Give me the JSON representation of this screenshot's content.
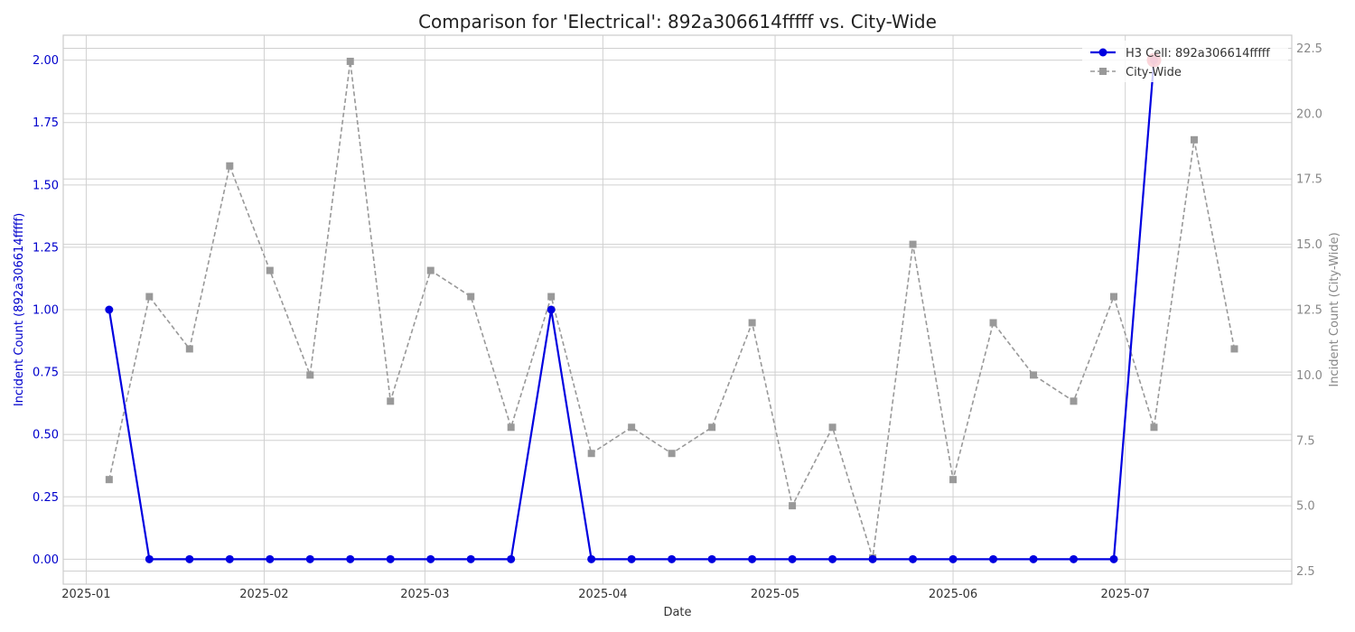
{
  "chart_data": {
    "type": "line",
    "title": "Comparison for 'Electrical': 892a306614fffff vs. City-Wide",
    "xlabel": "Date",
    "ylabel_left": "Incident Count (892a306614fffff)",
    "ylabel_right": "Incident Count (City-Wide)",
    "x_ticks": [
      "2025-01",
      "2025-02",
      "2025-03",
      "2025-04",
      "2025-05",
      "2025-06",
      "2025-07"
    ],
    "x_range": [
      "2024-12-28",
      "2025-07-30"
    ],
    "left_ylim": [
      -0.1,
      2.1
    ],
    "left_ticks": [
      "0.00",
      "0.25",
      "0.50",
      "0.75",
      "1.00",
      "1.25",
      "1.50",
      "1.75",
      "2.00"
    ],
    "right_ylim": [
      2.0,
      23.0
    ],
    "right_ticks": [
      "2.5",
      "5.0",
      "7.5",
      "10.0",
      "12.5",
      "15.0",
      "17.5",
      "20.0",
      "22.5"
    ],
    "grid": true,
    "legend_position": "top-right",
    "colors": {
      "h3": "#0000e0",
      "city": "#999999",
      "highlight": "#e8102a",
      "grid": "#d0d0d0",
      "left_axis": "#0000cc",
      "right_axis": "#888888"
    },
    "series": [
      {
        "name": "H3 Cell: 892a306614fffff",
        "axis": "left",
        "x": [
          "2025-01-05",
          "2025-01-12",
          "2025-01-19",
          "2025-01-26",
          "2025-02-02",
          "2025-02-09",
          "2025-02-16",
          "2025-02-23",
          "2025-03-02",
          "2025-03-09",
          "2025-03-16",
          "2025-03-23",
          "2025-03-30",
          "2025-04-06",
          "2025-04-13",
          "2025-04-20",
          "2025-04-27",
          "2025-05-04",
          "2025-05-11",
          "2025-05-18",
          "2025-05-25",
          "2025-06-01",
          "2025-06-08",
          "2025-06-15",
          "2025-06-22",
          "2025-06-29",
          "2025-07-06"
        ],
        "values": [
          1,
          0,
          0,
          0,
          0,
          0,
          0,
          0,
          0,
          0,
          0,
          1,
          0,
          0,
          0,
          0,
          0,
          0,
          0,
          0,
          0,
          0,
          0,
          0,
          0,
          0,
          2
        ],
        "highlight_index": 26
      },
      {
        "name": "City-Wide",
        "axis": "right",
        "x": [
          "2025-01-05",
          "2025-01-12",
          "2025-01-19",
          "2025-01-26",
          "2025-02-02",
          "2025-02-09",
          "2025-02-16",
          "2025-02-23",
          "2025-03-02",
          "2025-03-09",
          "2025-03-16",
          "2025-03-23",
          "2025-03-30",
          "2025-04-06",
          "2025-04-13",
          "2025-04-20",
          "2025-04-27",
          "2025-05-04",
          "2025-05-11",
          "2025-05-18",
          "2025-05-25",
          "2025-06-01",
          "2025-06-08",
          "2025-06-15",
          "2025-06-22",
          "2025-06-29",
          "2025-07-06",
          "2025-07-13",
          "2025-07-20"
        ],
        "values": [
          6,
          13,
          11,
          18,
          14,
          10,
          22,
          9,
          14,
          13,
          8,
          13,
          7,
          8,
          7,
          8,
          12,
          5,
          8,
          3,
          15,
          6,
          12,
          10,
          9,
          13,
          8,
          19,
          11
        ]
      }
    ]
  }
}
